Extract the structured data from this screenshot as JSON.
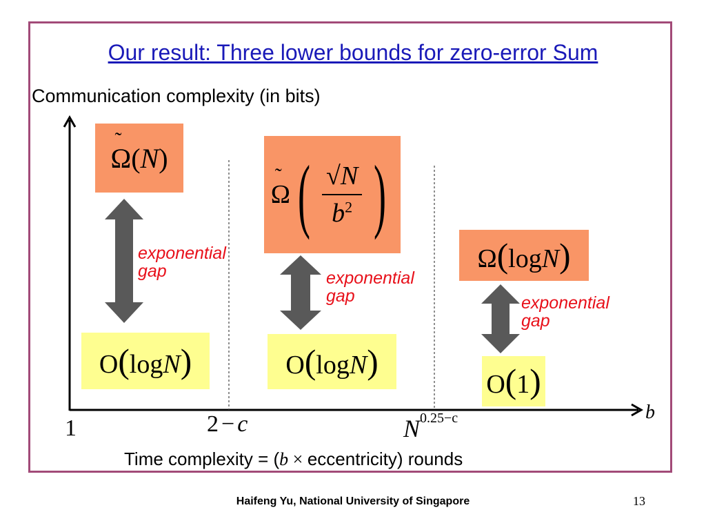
{
  "slide": {
    "title": "Our result: Three lower bounds for zero-error Sum",
    "y_axis_label": "Communication complexity (in bits)",
    "x_axis_label_pre": "Time complexity = (",
    "x_axis_label_b": "b",
    "x_axis_label_times": " × ",
    "x_axis_label_post": "eccentricity) rounds",
    "x_axis_var": "b",
    "ticks": {
      "origin": "1",
      "t1": "2 − c",
      "t2_base": "N",
      "t2_exp": "0.25−c"
    },
    "regions": [
      {
        "lower_bound": "Ω̃(N)",
        "upper_bound": "O(log N)",
        "gap_label_1": "exponential",
        "gap_label_2": "gap"
      },
      {
        "lower_bound": "Ω̃(√N / b²)",
        "upper_bound": "O(log N)",
        "gap_label_1": "exponential",
        "gap_label_2": "gap"
      },
      {
        "lower_bound": "Ω(log N)",
        "upper_bound": "O(1)",
        "gap_label_1": "exponential",
        "gap_label_2": "gap"
      }
    ],
    "footer": "Haifeng Yu, National University of Singapore",
    "page_number": "13"
  },
  "colors": {
    "lower_bound_fill": "#f99566",
    "upper_bound_fill": "#fefe90",
    "gap_text": "#e8101a",
    "arrow": "#595959",
    "title": "#1a1ab8",
    "frame": "#a24a78"
  }
}
